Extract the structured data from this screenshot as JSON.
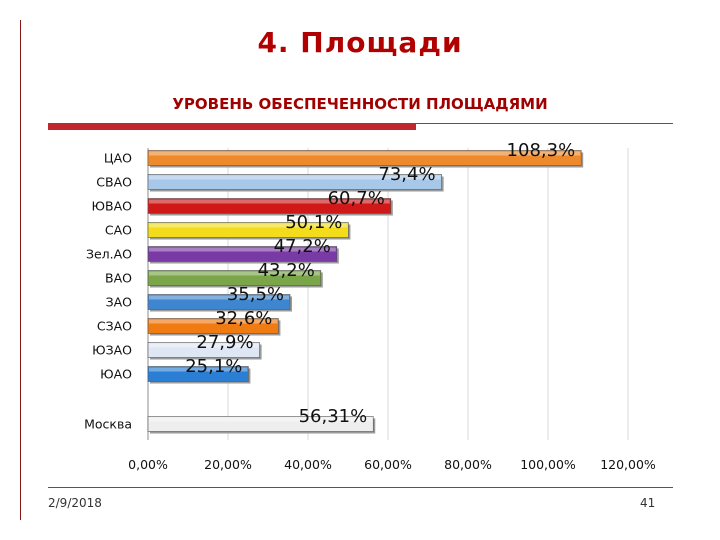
{
  "slide": {
    "title": "4. Площади",
    "footer_date": "2/9/2018",
    "page_number": "41"
  },
  "chart_data": {
    "type": "bar",
    "orientation": "horizontal",
    "title": "УРОВЕНЬ ОБЕСПЕЧЕННОСТИ ПЛОЩАДЯМИ",
    "categories": [
      "ЦАО",
      "СВАО",
      "ЮВАО",
      "САО",
      "Зел.АО",
      "ВАО",
      "ЗАО",
      "СЗАО",
      "ЮЗАО",
      "ЮАО",
      "Москва"
    ],
    "values": [
      108.3,
      73.4,
      60.7,
      50.1,
      47.2,
      43.2,
      35.5,
      32.6,
      27.9,
      25.1,
      56.31
    ],
    "value_labels": [
      "108,3%",
      "73,4%",
      "60,7%",
      "50,1%",
      "47,2%",
      "43,2%",
      "35,5%",
      "32,6%",
      "27,9%",
      "25,1%",
      "56,31%"
    ],
    "colors": [
      "#ef8a2c",
      "#a8c8ea",
      "#d01818",
      "#f2dc1c",
      "#7a3aa6",
      "#7aa548",
      "#3f86d1",
      "#f07b12",
      "#dfe6f4",
      "#2a7fd4",
      "#eeeeee"
    ],
    "x_ticks": [
      "0,00%",
      "20,00%",
      "40,00%",
      "60,00%",
      "80,00%",
      "100,00%",
      "120,00%"
    ],
    "xlim": [
      0,
      120
    ],
    "grid": true
  }
}
